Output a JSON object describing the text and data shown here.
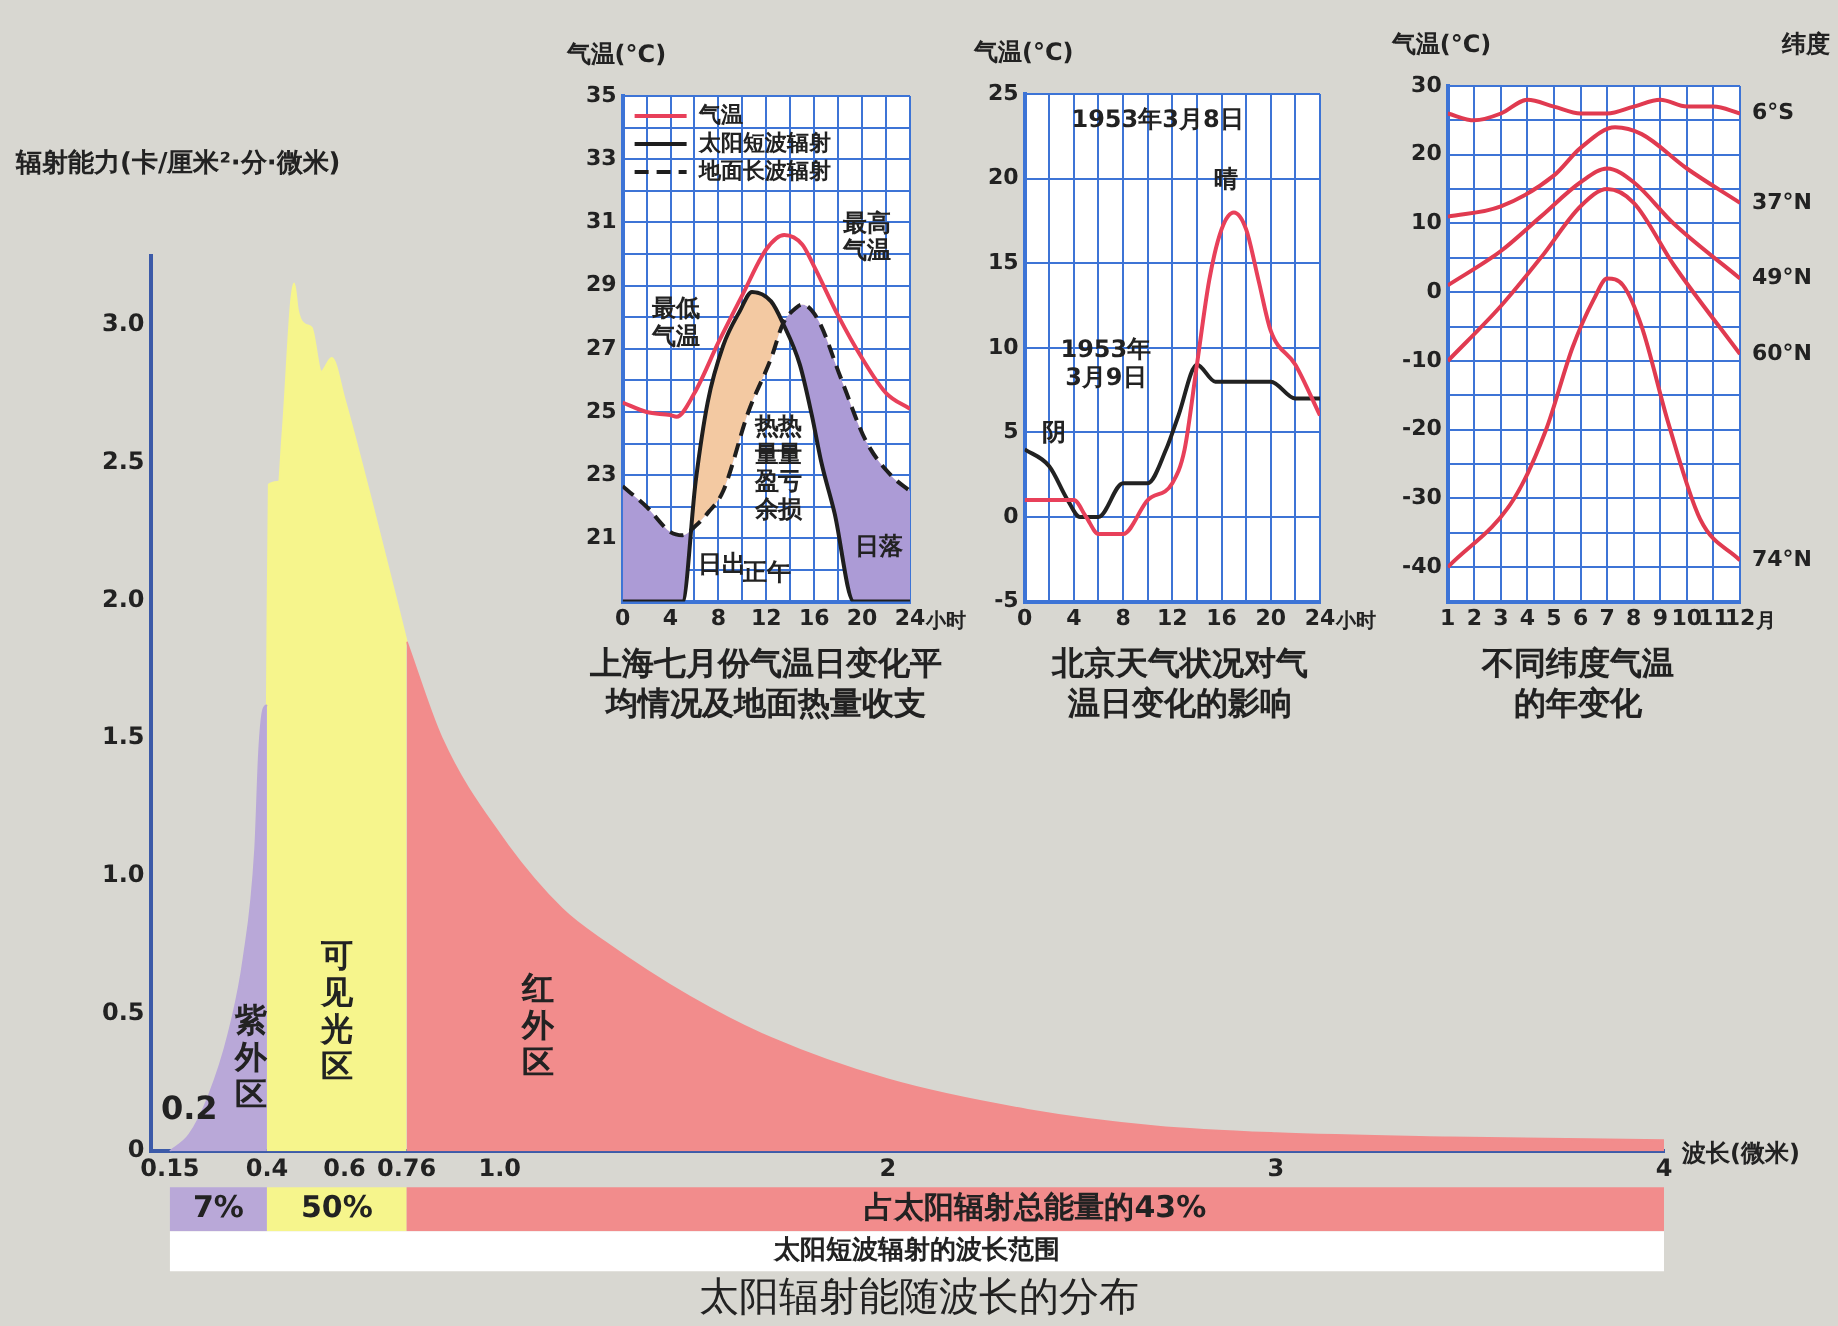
{
  "chart_data": [
    {
      "type": "area",
      "title": "太阳辐射能随波长的分布",
      "xlabel": "波长(微米)",
      "ylabel": "辐射能力(卡/厘米²·分·微米)",
      "xlim": [
        0.1,
        4
      ],
      "ylim": [
        0,
        3.25
      ],
      "xticks": [
        0.15,
        0.4,
        0.6,
        0.76,
        {
          "value": 1,
          "label": "1.0"
        },
        2,
        3,
        4
      ],
      "yticks": [
        0,
        0.5,
        {
          "value": 1,
          "label": "1.0"
        },
        1.5,
        {
          "value": 2,
          "label": "2.0"
        },
        2.5,
        {
          "value": 3,
          "label": "3.0"
        }
      ],
      "series": [
        {
          "color": "#b9a8d8",
          "x": [
            0.15,
            0.2,
            0.25,
            0.3,
            0.34,
            0.37,
            0.38,
            0.39,
            0.4
          ],
          "values": [
            0,
            0.06,
            0.2,
            0.42,
            0.7,
            1.1,
            1.45,
            1.6,
            1.62
          ]
        },
        {
          "color": "#f6f58c",
          "x": [
            0.4,
            0.405,
            0.43,
            0.44,
            0.47,
            0.48,
            0.5,
            0.515,
            0.54,
            0.567,
            0.6,
            0.68,
            0.76
          ],
          "values": [
            1.62,
            2.42,
            2.43,
            2.6,
            3.15,
            3.05,
            3.0,
            2.99,
            2.83,
            2.88,
            2.73,
            2.3,
            1.85
          ]
        },
        {
          "color": "#f28c8c",
          "x": [
            0.76,
            0.85,
            1.0,
            1.16,
            1.27,
            1.49,
            1.7,
            2.0,
            2.36,
            2.69,
            3.0,
            3.45,
            4.0
          ],
          "values": [
            1.85,
            1.5,
            1.15,
            0.88,
            0.76,
            0.56,
            0.41,
            0.26,
            0.15,
            0.09,
            0.065,
            0.05,
            0.04
          ]
        }
      ],
      "annotations": [
        "紫外区",
        "可见光区",
        "红外区",
        "0.2",
        "7%",
        "50%",
        "占太阳辐射总能量的43%",
        "太阳短波辐射的波长范围"
      ]
    },
    {
      "type": "line",
      "title": "上海七月份气温日变化平均情况及地面热量收支",
      "xlabel": "小时",
      "ylabel": "气温(°C)",
      "xlim": [
        0,
        24
      ],
      "ylim": [
        19,
        35
      ],
      "xticks": [
        0,
        {
          "value": 2,
          "label": null
        },
        4,
        {
          "value": 6,
          "label": null
        },
        8,
        {
          "value": 10,
          "label": null
        },
        12,
        {
          "value": 14,
          "label": null
        },
        16,
        {
          "value": 18,
          "label": null
        },
        20,
        {
          "value": 22,
          "label": null
        },
        24
      ],
      "yticks": [
        {
          "value": 19,
          "label": null
        },
        {
          "value": 20,
          "label": null
        },
        21,
        {
          "value": 22,
          "label": null
        },
        23,
        {
          "value": 24,
          "label": null
        },
        25,
        {
          "value": 26,
          "label": null
        },
        27,
        {
          "value": 28,
          "label": null
        },
        29,
        {
          "value": 30,
          "label": null
        },
        31,
        {
          "value": 32,
          "label": null
        },
        33,
        {
          "value": 34,
          "label": null
        },
        35
      ],
      "grid": true,
      "legend": "top left",
      "series": [
        {
          "name": "气温",
          "color": "#e8405a",
          "x": [
            0,
            2,
            4,
            4.5,
            6,
            8,
            10,
            12,
            13.5,
            15,
            16,
            18,
            20,
            22,
            24
          ],
          "values": [
            25.3,
            25.0,
            24.9,
            24.85,
            25.6,
            27.2,
            28.7,
            30.15,
            30.6,
            30.3,
            29.6,
            28.05,
            26.7,
            25.6,
            25.1
          ]
        },
        {
          "name": "太阳短波辐射",
          "color": "#1e1e1e",
          "x": [
            0,
            5,
            6.1,
            7.1,
            8.4,
            9.8,
            10.8,
            12.4,
            13.4,
            14.8,
            15.8,
            16.6,
            17.7,
            19.3,
            24
          ],
          "values": [
            19,
            19,
            22.8,
            25.3,
            27.1,
            28.2,
            28.8,
            28.5,
            27.8,
            26.5,
            24.9,
            23.4,
            21.8,
            19,
            19
          ]
        },
        {
          "name": "地面长波辐射",
          "color": "#1e1e1e",
          "line_style": "dashed",
          "x": [
            0,
            2,
            4,
            5,
            6.1,
            7.1,
            8.4,
            10.5,
            12.4,
            13.4,
            14.5,
            15,
            16.35,
            18.2,
            20.3,
            22.4,
            24
          ],
          "values": [
            22.65,
            22.0,
            21.2,
            21.1,
            21.4,
            21.8,
            22.5,
            25.0,
            26.7,
            27.8,
            28.3,
            28.4,
            27.9,
            26.1,
            24.1,
            23.0,
            22.5
          ]
        }
      ],
      "annotations": [
        "最高气温",
        "最低气温",
        "热量盈余",
        "热量亏损",
        "日出",
        "正午",
        "日落"
      ]
    },
    {
      "type": "line",
      "title": "北京天气状况对气温日变化的影响",
      "xlabel": "小时",
      "ylabel": "气温(°C)",
      "xlim": [
        0,
        24
      ],
      "ylim": [
        -5,
        25
      ],
      "xticks": [
        0,
        {
          "value": 2,
          "label": null
        },
        4,
        {
          "value": 6,
          "label": null
        },
        8,
        {
          "value": 10,
          "label": null
        },
        12,
        {
          "value": 14,
          "label": null
        },
        16,
        {
          "value": 18,
          "label": null
        },
        20,
        {
          "value": 22,
          "label": null
        },
        24
      ],
      "yticks": [
        -5,
        0,
        5,
        10,
        15,
        20,
        25
      ],
      "grid": true,
      "series": [
        {
          "color": "#e8405a",
          "x": [
            0,
            2,
            4,
            5,
            6,
            7,
            8,
            10,
            12,
            13,
            14,
            15,
            16,
            17,
            18,
            19,
            20,
            22,
            24
          ],
          "values": [
            1,
            1,
            1,
            0,
            -1,
            -1,
            -1,
            1,
            2,
            4,
            9,
            14,
            17,
            18,
            17,
            14,
            11,
            9,
            6
          ]
        },
        {
          "color": "#222222",
          "x": [
            0,
            2,
            3.5,
            4.5,
            6,
            8,
            10,
            11.5,
            12.5,
            14,
            15.5,
            17,
            18.5,
            20,
            22,
            24
          ],
          "values": [
            4,
            3,
            1,
            0,
            0,
            2,
            2,
            4,
            6,
            9,
            8,
            8,
            8,
            8,
            7,
            7
          ]
        }
      ],
      "annotations": [
        "1953年3月8日",
        "晴",
        "1953年3月9日",
        "阴"
      ]
    },
    {
      "type": "line",
      "title": "不同纬度气温的年变化",
      "xlabel": "月",
      "ylabel": "气温(°C)",
      "y2label": "纬度",
      "xlim": [
        1,
        12
      ],
      "ylim": [
        -45,
        30
      ],
      "xticks": [
        1,
        2,
        3,
        4,
        5,
        6,
        7,
        8,
        9,
        10,
        11,
        12
      ],
      "yticks": [
        {
          "value": -45,
          "label": null
        },
        -40,
        {
          "value": -35,
          "label": null
        },
        -30,
        {
          "value": -25,
          "label": null
        },
        -20,
        {
          "value": -15,
          "label": null
        },
        -10,
        {
          "value": -5,
          "label": null
        },
        0,
        {
          "value": 5,
          "label": null
        },
        10,
        {
          "value": 15,
          "label": null
        },
        20,
        {
          "value": 25,
          "label": null
        },
        30
      ],
      "grid": true,
      "series": [
        {
          "name": "6°S",
          "color": "#e03a50",
          "x": [
            1,
            2,
            3,
            4,
            5,
            6,
            7,
            8,
            9,
            10,
            11,
            12
          ],
          "values": [
            26,
            25,
            26,
            28,
            27,
            26,
            26,
            27,
            28,
            27,
            27,
            26
          ]
        },
        {
          "name": "37°N",
          "color": "#e03a50",
          "x": [
            1,
            3,
            5,
            6,
            7.3,
            8.3,
            10,
            12
          ],
          "values": [
            11,
            12.5,
            17,
            21,
            24,
            23,
            18,
            13
          ]
        },
        {
          "name": "49°N",
          "color": "#e03a50",
          "x": [
            1,
            3,
            4.5,
            6,
            7,
            8,
            9.5,
            12
          ],
          "values": [
            1,
            6,
            11,
            16,
            18,
            16,
            10,
            2
          ]
        },
        {
          "name": "60°N",
          "color": "#e03a50",
          "x": [
            1,
            3,
            4.5,
            6,
            7,
            8,
            9.5,
            12
          ],
          "values": [
            -10,
            -2,
            5,
            12.5,
            15,
            13,
            4,
            -9
          ]
        },
        {
          "name": "74°N",
          "color": "#e03a50",
          "x": [
            1,
            3.5,
            4.7,
            5.7,
            6.5,
            7,
            7.6,
            8.3,
            9.3,
            10.5,
            12
          ],
          "values": [
            -40,
            -30,
            -20,
            -8,
            -1,
            2,
            1,
            -5,
            -19,
            -33,
            -39
          ]
        }
      ]
    }
  ]
}
